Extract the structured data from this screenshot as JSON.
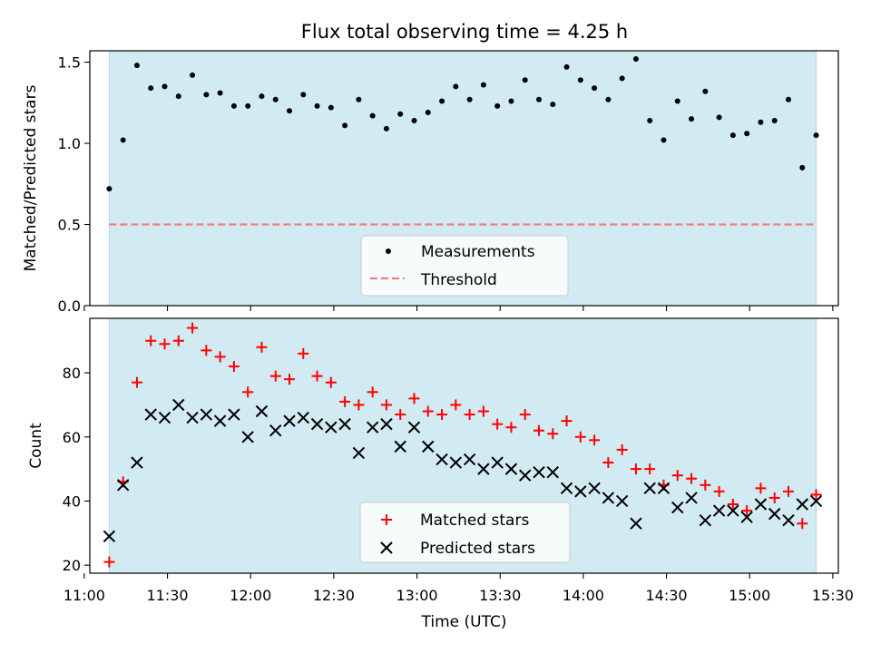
{
  "chart_data": [
    {
      "type": "scatter",
      "title": "Flux total observing time = 4.25 h",
      "ylabel": "Matched/Predicted stars",
      "xlabel": "",
      "ylim": [
        0,
        1.57
      ],
      "yticks": [
        "0.0",
        "0.5",
        "1.0",
        "1.5"
      ],
      "ytick_values": [
        0,
        0.5,
        1.0,
        1.5
      ],
      "shaded_span": [
        "11:09",
        "15:24"
      ],
      "shade_color": "#add8e6",
      "threshold": 0.5,
      "threshold_color": "#f08080",
      "legend_position": "lower center",
      "series": [
        {
          "name": "Measurements",
          "marker": "dot",
          "color": "#000000",
          "x": [
            "11:09",
            "11:14",
            "11:19",
            "11:24",
            "11:29",
            "11:34",
            "11:39",
            "11:44",
            "11:49",
            "11:54",
            "11:59",
            "12:04",
            "12:09",
            "12:14",
            "12:19",
            "12:24",
            "12:29",
            "12:34",
            "12:39",
            "12:44",
            "12:49",
            "12:54",
            "12:59",
            "13:04",
            "13:09",
            "13:14",
            "13:19",
            "13:24",
            "13:29",
            "13:34",
            "13:39",
            "13:44",
            "13:49",
            "13:54",
            "13:59",
            "14:04",
            "14:09",
            "14:14",
            "14:19",
            "14:24",
            "14:29",
            "14:34",
            "14:39",
            "14:44",
            "14:49",
            "14:54",
            "14:59",
            "15:04",
            "15:09",
            "15:14",
            "15:19",
            "15:24"
          ],
          "y": [
            0.72,
            1.02,
            1.48,
            1.34,
            1.35,
            1.29,
            1.42,
            1.3,
            1.31,
            1.23,
            1.23,
            1.29,
            1.27,
            1.2,
            1.3,
            1.23,
            1.22,
            1.11,
            1.27,
            1.17,
            1.09,
            1.18,
            1.14,
            1.19,
            1.26,
            1.35,
            1.27,
            1.36,
            1.23,
            1.26,
            1.39,
            1.27,
            1.24,
            1.47,
            1.39,
            1.34,
            1.27,
            1.4,
            1.52,
            1.14,
            1.02,
            1.26,
            1.15,
            1.32,
            1.16,
            1.05,
            1.06,
            1.13,
            1.14,
            1.27,
            0.85,
            1.05
          ]
        },
        {
          "name": "Threshold",
          "marker": "dashed-line",
          "color": "#f08080",
          "x": [
            "11:09",
            "15:24"
          ],
          "y": [
            0.5,
            0.5
          ]
        }
      ]
    },
    {
      "type": "scatter",
      "title": "",
      "ylabel": "Count",
      "xlabel": "Time (UTC)",
      "xlim": [
        "11:02",
        "15:32"
      ],
      "xticks": [
        "11:00",
        "11:30",
        "12:00",
        "12:30",
        "13:00",
        "13:30",
        "14:00",
        "14:30",
        "15:00",
        "15:30"
      ],
      "ylim": [
        17.5,
        97
      ],
      "yticks": [
        "20",
        "40",
        "60",
        "80"
      ],
      "ytick_values": [
        20,
        40,
        60,
        80
      ],
      "shaded_span": [
        "11:09",
        "15:24"
      ],
      "shade_color": "#add8e6",
      "legend_position": "lower center",
      "series": [
        {
          "name": "Matched stars",
          "marker": "plus",
          "color": "#ff0000",
          "x": [
            "11:09",
            "11:14",
            "11:19",
            "11:24",
            "11:29",
            "11:34",
            "11:39",
            "11:44",
            "11:49",
            "11:54",
            "11:59",
            "12:04",
            "12:09",
            "12:14",
            "12:19",
            "12:24",
            "12:29",
            "12:34",
            "12:39",
            "12:44",
            "12:49",
            "12:54",
            "12:59",
            "13:04",
            "13:09",
            "13:14",
            "13:19",
            "13:24",
            "13:29",
            "13:34",
            "13:39",
            "13:44",
            "13:49",
            "13:54",
            "13:59",
            "14:04",
            "14:09",
            "14:14",
            "14:19",
            "14:24",
            "14:29",
            "14:34",
            "14:39",
            "14:44",
            "14:49",
            "14:54",
            "14:59",
            "15:04",
            "15:09",
            "15:14",
            "15:19",
            "15:24"
          ],
          "y": [
            21,
            46,
            77,
            90,
            89,
            90,
            94,
            87,
            85,
            82,
            74,
            88,
            79,
            78,
            86,
            79,
            77,
            71,
            70,
            74,
            70,
            67,
            72,
            68,
            67,
            70,
            67,
            68,
            64,
            63,
            67,
            62,
            61,
            65,
            60,
            59,
            52,
            56,
            50,
            50,
            45,
            48,
            47,
            45,
            43,
            39,
            37,
            44,
            41,
            43,
            33,
            42
          ]
        },
        {
          "name": "Predicted stars",
          "marker": "x",
          "color": "#000000",
          "x": [
            "11:09",
            "11:14",
            "11:19",
            "11:24",
            "11:29",
            "11:34",
            "11:39",
            "11:44",
            "11:49",
            "11:54",
            "11:59",
            "12:04",
            "12:09",
            "12:14",
            "12:19",
            "12:24",
            "12:29",
            "12:34",
            "12:39",
            "12:44",
            "12:49",
            "12:54",
            "12:59",
            "13:04",
            "13:09",
            "13:14",
            "13:19",
            "13:24",
            "13:29",
            "13:34",
            "13:39",
            "13:44",
            "13:49",
            "13:54",
            "13:59",
            "14:04",
            "14:09",
            "14:14",
            "14:19",
            "14:24",
            "14:29",
            "14:34",
            "14:39",
            "14:44",
            "14:49",
            "14:54",
            "14:59",
            "15:04",
            "15:09",
            "15:14",
            "15:19",
            "15:24"
          ],
          "y": [
            29,
            45,
            52,
            67,
            66,
            70,
            66,
            67,
            65,
            67,
            60,
            68,
            62,
            65,
            66,
            64,
            63,
            64,
            55,
            63,
            64,
            57,
            63,
            57,
            53,
            52,
            53,
            50,
            52,
            50,
            48,
            49,
            49,
            44,
            43,
            44,
            41,
            40,
            33,
            44,
            44,
            38,
            41,
            34,
            37,
            37,
            35,
            39,
            36,
            34,
            39,
            40
          ]
        }
      ]
    }
  ]
}
